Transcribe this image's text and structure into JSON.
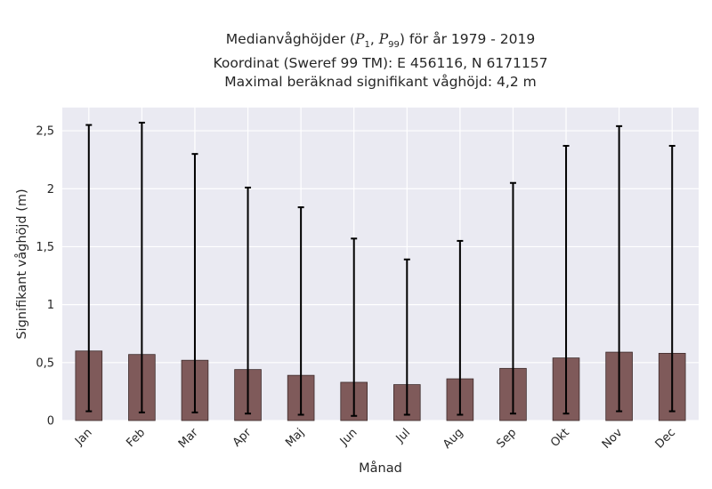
{
  "chart_data": {
    "type": "bar",
    "title_lines": {
      "line1_prefix": "Medianvåghöjder (",
      "p_low_symbol": "P",
      "p_low_sub": "1",
      "p_sep": ", ",
      "p_high_symbol": "P",
      "p_high_sub": "99",
      "line1_suffix": ") för år 1979 - 2019",
      "line2": "Koordinat (Sweref 99 TM): E 456116, N 6171157",
      "line3": "Maximal beräknad signifikant våghöjd: 4,2 m"
    },
    "xlabel": "Månad",
    "ylabel": "Signifikant våghöjd (m)",
    "ylim": [
      0,
      2.7
    ],
    "yticks": [
      0,
      0.5,
      1,
      1.5,
      2,
      2.5
    ],
    "ytick_labels": [
      "0",
      "0,5",
      "1",
      "1,5",
      "2",
      "2,5"
    ],
    "categories": [
      "Jan",
      "Feb",
      "Mar",
      "Apr",
      "Maj",
      "Jun",
      "Jul",
      "Aug",
      "Sep",
      "Okt",
      "Nov",
      "Dec"
    ],
    "values": [
      0.6,
      0.57,
      0.52,
      0.44,
      0.39,
      0.33,
      0.31,
      0.36,
      0.45,
      0.54,
      0.59,
      0.58
    ],
    "p1": [
      0.08,
      0.07,
      0.07,
      0.06,
      0.05,
      0.04,
      0.05,
      0.05,
      0.06,
      0.06,
      0.08,
      0.08
    ],
    "p99": [
      2.55,
      2.57,
      2.3,
      2.01,
      1.84,
      1.57,
      1.39,
      1.55,
      2.05,
      2.37,
      2.54,
      2.37
    ],
    "bar_color": "#7f5a5a",
    "bar_edge_color": "#3d2b2b",
    "errorbar_color": "#000000",
    "plot_background": "#eaeaf2",
    "grid_color": "#ffffff",
    "grid": true
  }
}
